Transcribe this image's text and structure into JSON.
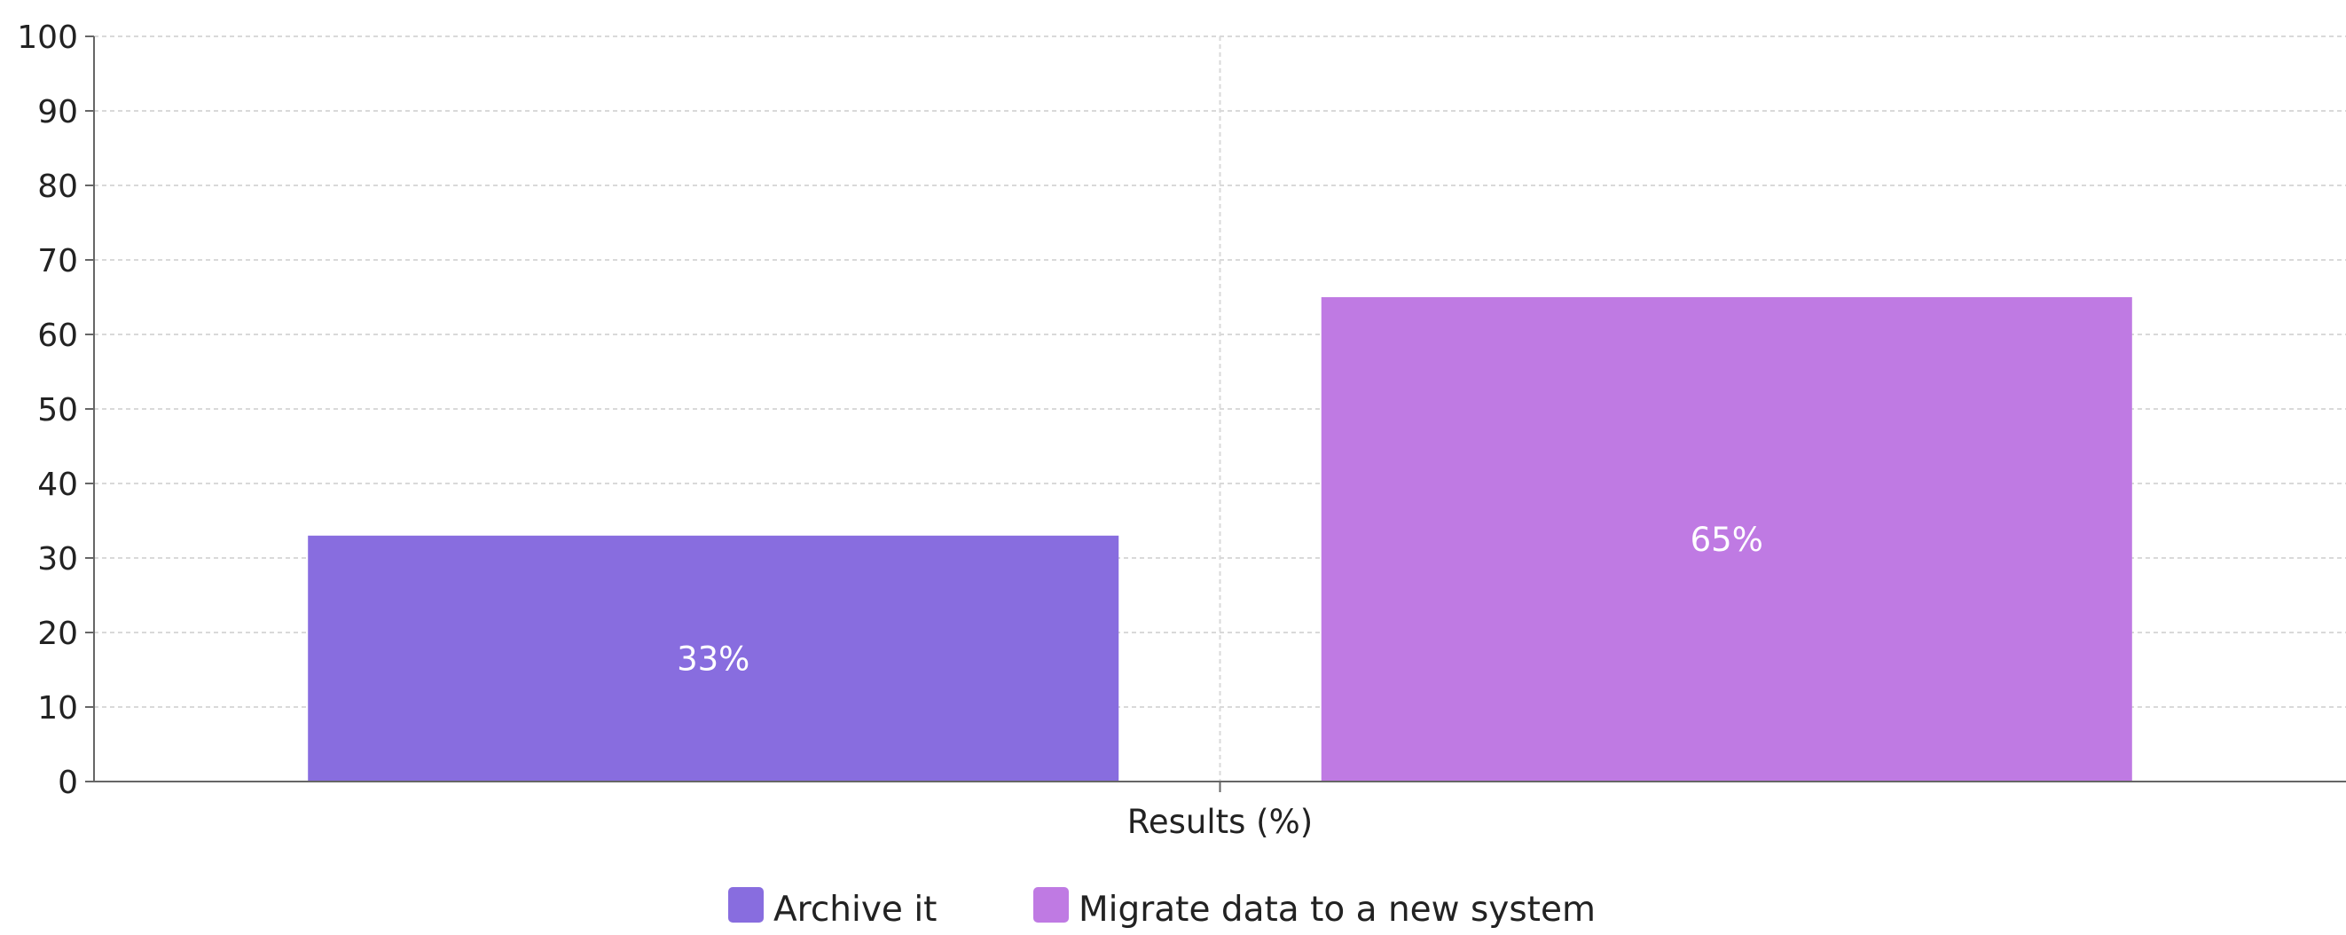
{
  "chart_data": {
    "type": "bar",
    "categories": [
      "Results (%)"
    ],
    "series": [
      {
        "name": "Archive it",
        "values": [
          33
        ],
        "label": "33%",
        "color": "#886ddf"
      },
      {
        "name": "Migrate data to a new system",
        "values": [
          65
        ],
        "label": "65%",
        "color": "#bf7ae3"
      }
    ],
    "xlabel": "Results (%)",
    "ylabel": "",
    "ylim": [
      0,
      100
    ],
    "yticks": [
      "0",
      "10",
      "20",
      "30",
      "40",
      "50",
      "60",
      "70",
      "80",
      "90",
      "100"
    ],
    "grid": true,
    "legend_position": "bottom-center"
  }
}
